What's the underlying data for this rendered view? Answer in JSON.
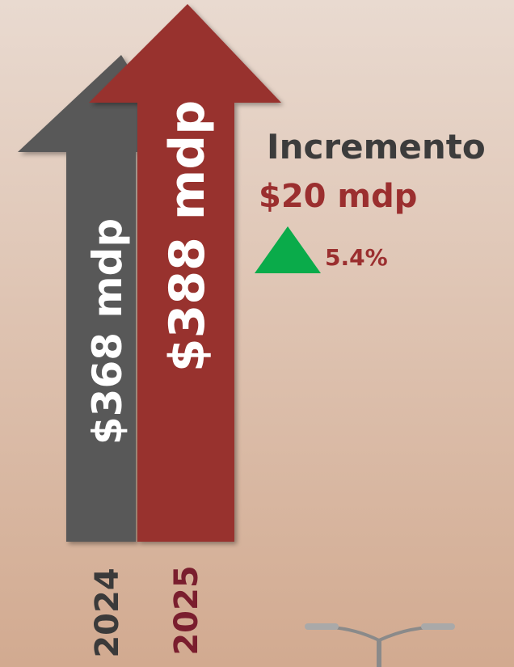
{
  "bars": [
    {
      "year": "2024",
      "label": "$368 mdp"
    },
    {
      "year": "2025",
      "label": "$388 mdp"
    }
  ],
  "increment": {
    "title": "Incremento",
    "amount": "$20 mdp",
    "percent": "5.4%"
  }
}
